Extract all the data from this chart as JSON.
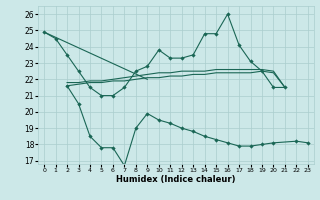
{
  "series": [
    {
      "name": "top_line",
      "x": [
        0,
        1,
        2,
        3,
        4,
        5,
        6,
        7,
        8,
        9,
        10,
        11,
        12,
        13,
        14,
        15,
        16,
        17,
        18,
        19,
        20,
        21
      ],
      "y": [
        24.9,
        24.5,
        23.5,
        22.5,
        21.5,
        21.0,
        21.0,
        21.5,
        22.5,
        22.8,
        23.8,
        23.3,
        23.3,
        23.5,
        24.8,
        24.8,
        26.0,
        24.1,
        23.1,
        22.5,
        21.5,
        21.5
      ],
      "markers": true
    },
    {
      "name": "diag_line",
      "x": [
        0,
        9
      ],
      "y": [
        24.9,
        22.0
      ],
      "markers": false
    },
    {
      "name": "flat_upper",
      "x": [
        2,
        3,
        4,
        5,
        6,
        7,
        8,
        9,
        10,
        11,
        12,
        13,
        14,
        15,
        16,
        17,
        18,
        19,
        20,
        21
      ],
      "y": [
        21.8,
        21.8,
        21.9,
        21.9,
        22.0,
        22.1,
        22.2,
        22.3,
        22.4,
        22.4,
        22.5,
        22.5,
        22.5,
        22.6,
        22.6,
        22.6,
        22.6,
        22.6,
        22.5,
        21.5
      ],
      "markers": false
    },
    {
      "name": "flat_lower",
      "x": [
        2,
        3,
        4,
        5,
        6,
        7,
        8,
        9,
        10,
        11,
        12,
        13,
        14,
        15,
        16,
        17,
        18,
        19,
        20,
        21
      ],
      "y": [
        21.6,
        21.7,
        21.8,
        21.8,
        21.9,
        21.9,
        22.0,
        22.1,
        22.1,
        22.2,
        22.2,
        22.3,
        22.3,
        22.4,
        22.4,
        22.4,
        22.4,
        22.5,
        22.4,
        21.5
      ],
      "markers": false
    },
    {
      "name": "min_line",
      "x": [
        2,
        3,
        4,
        5,
        6,
        7,
        8,
        9,
        10,
        11,
        12,
        13,
        14,
        15,
        16,
        17,
        18,
        19,
        20,
        22,
        23
      ],
      "y": [
        21.6,
        20.5,
        18.5,
        17.8,
        17.8,
        16.7,
        19.0,
        19.9,
        19.5,
        19.3,
        19.0,
        18.8,
        18.5,
        18.3,
        18.1,
        17.9,
        17.9,
        18.0,
        18.1,
        18.2,
        18.1
      ],
      "markers": true
    }
  ],
  "bg_color": "#cce8e8",
  "grid_color": "#aacece",
  "line_color": "#1a6655",
  "ylabel_ticks": [
    17,
    18,
    19,
    20,
    21,
    22,
    23,
    24,
    25,
    26
  ],
  "xlabel_ticks": [
    0,
    1,
    2,
    3,
    4,
    5,
    6,
    7,
    8,
    9,
    10,
    11,
    12,
    13,
    14,
    15,
    16,
    17,
    18,
    19,
    20,
    21,
    22,
    23
  ],
  "xlabel": "Humidex (Indice chaleur)",
  "ylim": [
    16.8,
    26.5
  ],
  "xlim": [
    -0.5,
    23.5
  ]
}
